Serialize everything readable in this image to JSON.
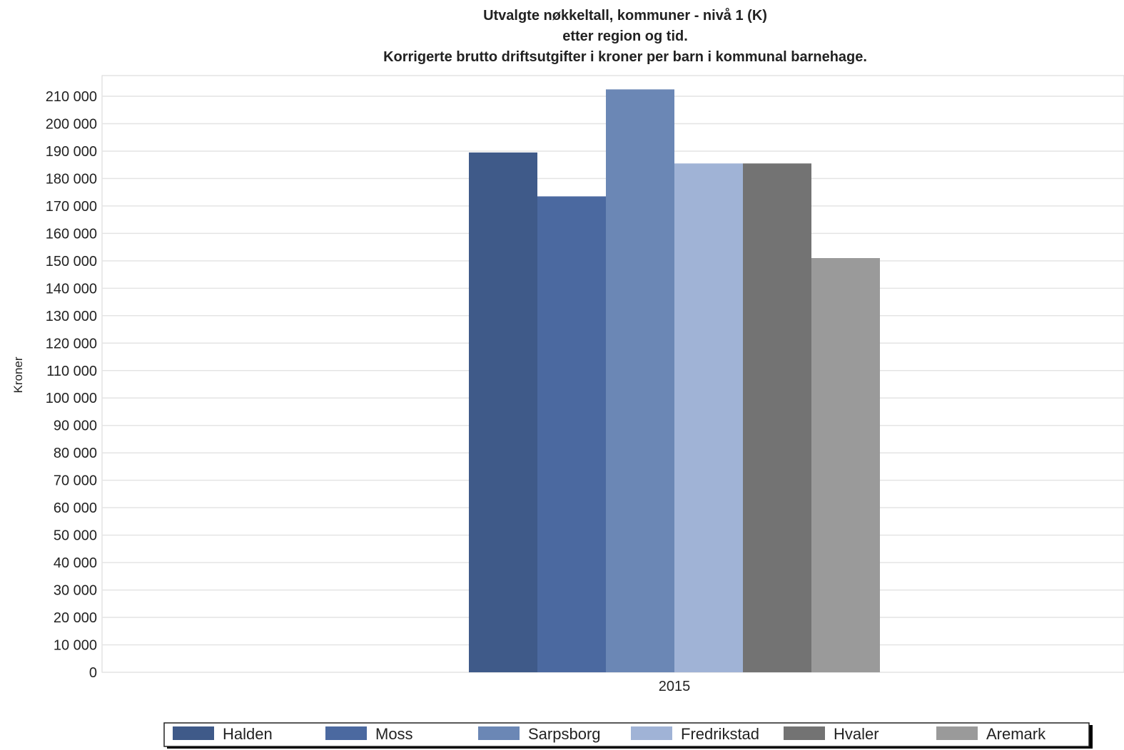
{
  "chart_data": {
    "type": "bar",
    "title": [
      "Utvalgte nøkkeltall, kommuner - nivå 1 (K)",
      "etter region og tid.",
      "Korrigerte brutto driftsutgifter i kroner per barn i kommunal barnehage."
    ],
    "ylabel": "Kroner",
    "xlabel": "",
    "categories": [
      "2015"
    ],
    "ylim": [
      0,
      210000
    ],
    "ytick_step": 10000,
    "yticks": [
      "0",
      "10 000",
      "20 000",
      "30 000",
      "40 000",
      "50 000",
      "60 000",
      "70 000",
      "80 000",
      "90 000",
      "100 000",
      "110 000",
      "120 000",
      "130 000",
      "140 000",
      "150 000",
      "160 000",
      "170 000",
      "180 000",
      "190 000",
      "200 000",
      "210 000"
    ],
    "grid": true,
    "legend_position": "bottom",
    "series": [
      {
        "name": "Halden",
        "values": [
          189500
        ],
        "color": "#3f5a89"
      },
      {
        "name": "Moss",
        "values": [
          173500
        ],
        "color": "#4b69a0"
      },
      {
        "name": "Sarpsborg",
        "values": [
          212500
        ],
        "color": "#6b87b5"
      },
      {
        "name": "Fredrikstad",
        "values": [
          185500
        ],
        "color": "#a0b3d6"
      },
      {
        "name": "Hvaler",
        "values": [
          185500
        ],
        "color": "#737373"
      },
      {
        "name": "Aremark",
        "values": [
          151000
        ],
        "color": "#9a9a9a"
      }
    ]
  }
}
